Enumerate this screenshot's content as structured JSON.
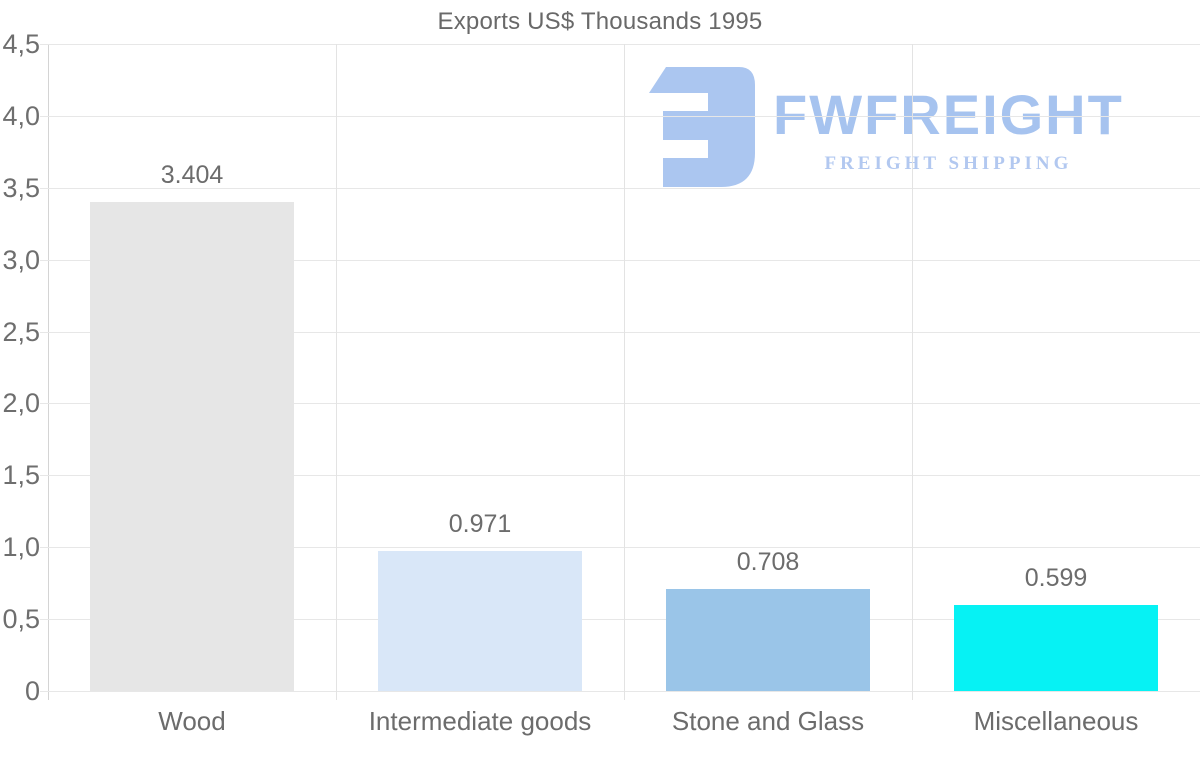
{
  "chart_data": {
    "type": "bar",
    "title": "Exports US$ Thousands 1995",
    "categories": [
      "Wood",
      "Intermediate goods",
      "Stone and Glass",
      "Miscellaneous"
    ],
    "values": [
      3.404,
      0.971,
      0.708,
      0.599
    ],
    "value_labels": [
      "3.404",
      "0.971",
      "0.708",
      "0.599"
    ],
    "bar_colors": [
      "#e6e6e6",
      "#d9e7f8",
      "#9ac5e8",
      "#06f2f4"
    ],
    "xlabel": "",
    "ylabel": "",
    "ylim": [
      0,
      4.5
    ],
    "ytick_values": [
      0,
      0.5,
      1,
      1.5,
      2,
      2.5,
      3,
      3.5,
      4,
      4.5
    ],
    "ytick_labels": [
      "0",
      "0,5",
      "1,0",
      "1,5",
      "2,0",
      "2,5",
      "3,0",
      "3,5",
      "4,0",
      "4,5"
    ],
    "grid": "horizontal and vertical light gray gridlines",
    "legend": "none"
  },
  "logo": {
    "name": "FWFREIGHT",
    "tagline": "FREIGHT SHIPPING",
    "brand_color": "#a6c3ef"
  }
}
